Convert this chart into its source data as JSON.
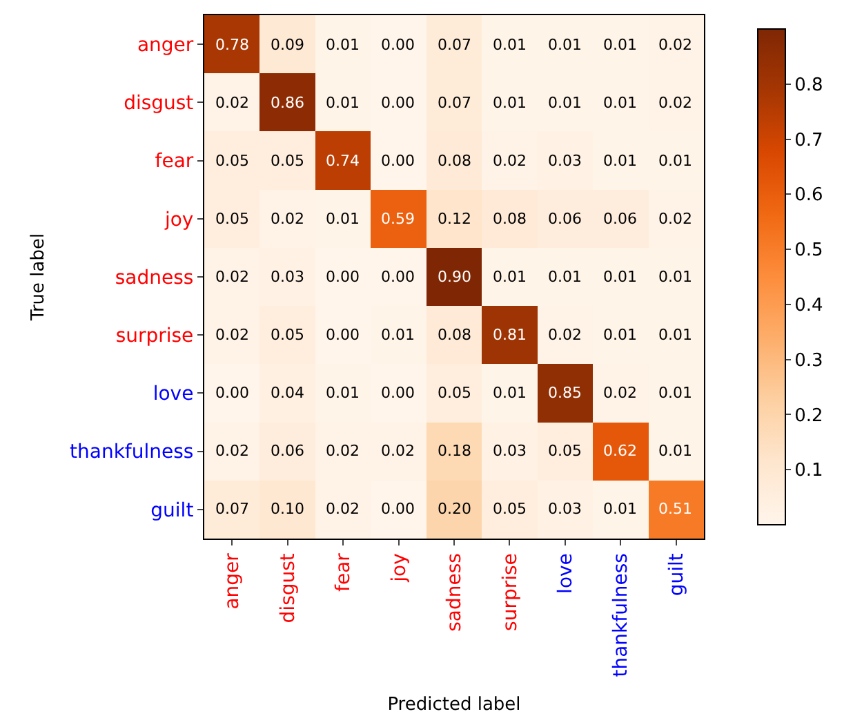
{
  "chart_data": {
    "type": "heatmap",
    "xlabel": "Predicted label",
    "ylabel": "True label",
    "categories": [
      "anger",
      "disgust",
      "fear",
      "joy",
      "sadness",
      "surprise",
      "love",
      "thankfulness",
      "guilt"
    ],
    "y_categories": [
      "anger",
      "disgust",
      "fear",
      "joy",
      "sadness",
      "surprise",
      "love",
      "thankfulness",
      "guilt"
    ],
    "cells": [
      [
        0.78,
        0.09,
        0.01,
        0.0,
        0.07,
        0.01,
        0.01,
        0.01,
        0.02
      ],
      [
        0.02,
        0.86,
        0.01,
        0.0,
        0.07,
        0.01,
        0.01,
        0.01,
        0.02
      ],
      [
        0.05,
        0.05,
        0.74,
        0.0,
        0.08,
        0.02,
        0.03,
        0.01,
        0.01
      ],
      [
        0.05,
        0.02,
        0.01,
        0.59,
        0.12,
        0.08,
        0.06,
        0.06,
        0.02
      ],
      [
        0.02,
        0.03,
        0.0,
        0.0,
        0.9,
        0.01,
        0.01,
        0.01,
        0.01
      ],
      [
        0.02,
        0.05,
        0.0,
        0.01,
        0.08,
        0.81,
        0.02,
        0.01,
        0.01
      ],
      [
        0.0,
        0.04,
        0.01,
        0.0,
        0.05,
        0.01,
        0.85,
        0.02,
        0.01
      ],
      [
        0.02,
        0.06,
        0.02,
        0.02,
        0.18,
        0.03,
        0.05,
        0.62,
        0.01
      ],
      [
        0.07,
        0.1,
        0.02,
        0.0,
        0.2,
        0.05,
        0.03,
        0.01,
        0.51
      ]
    ],
    "cell_labels": [
      [
        "0.78",
        "0.09",
        "0.01",
        "0.00",
        "0.07",
        "0.01",
        "0.01",
        "0.01",
        "0.02"
      ],
      [
        "0.02",
        "0.86",
        "0.01",
        "0.00",
        "0.07",
        "0.01",
        "0.01",
        "0.01",
        "0.02"
      ],
      [
        "0.05",
        "0.05",
        "0.74",
        "0.00",
        "0.08",
        "0.02",
        "0.03",
        "0.01",
        "0.01"
      ],
      [
        "0.05",
        "0.02",
        "0.01",
        "0.59",
        "0.12",
        "0.08",
        "0.06",
        "0.06",
        "0.02"
      ],
      [
        "0.02",
        "0.03",
        "0.00",
        "0.00",
        "0.90",
        "0.01",
        "0.01",
        "0.01",
        "0.01"
      ],
      [
        "0.02",
        "0.05",
        "0.00",
        "0.01",
        "0.08",
        "0.81",
        "0.02",
        "0.01",
        "0.01"
      ],
      [
        "0.00",
        "0.04",
        "0.01",
        "0.00",
        "0.05",
        "0.01",
        "0.85",
        "0.02",
        "0.01"
      ],
      [
        "0.02",
        "0.06",
        "0.02",
        "0.02",
        "0.18",
        "0.03",
        "0.05",
        "0.62",
        "0.01"
      ],
      [
        "0.07",
        "0.10",
        "0.02",
        "0.00",
        "0.20",
        "0.05",
        "0.03",
        "0.01",
        "0.51"
      ]
    ],
    "clim": [
      0,
      0.9
    ],
    "cticks": [
      0.1,
      0.2,
      0.3,
      0.4,
      0.5,
      0.6,
      0.7,
      0.8
    ]
  }
}
